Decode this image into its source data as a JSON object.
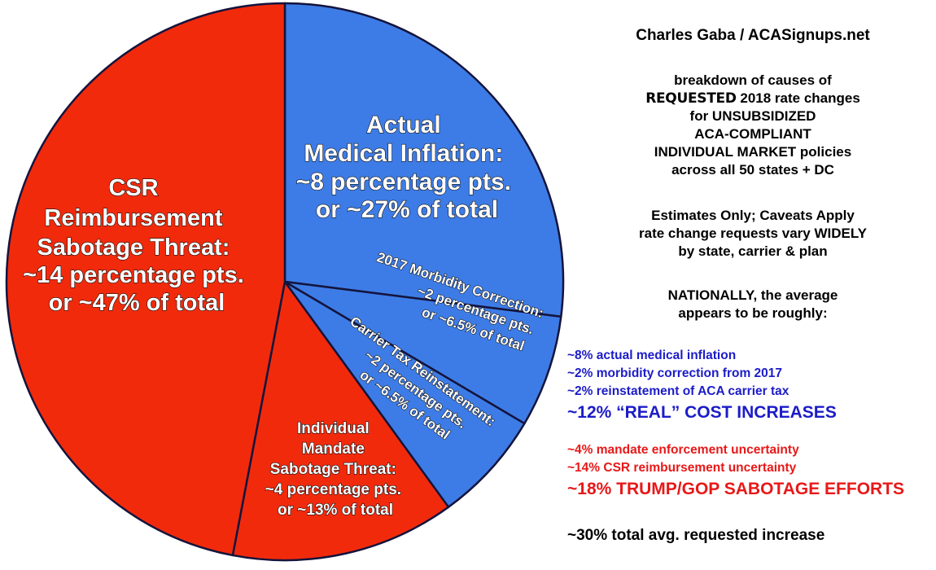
{
  "chart_data": {
    "type": "pie",
    "title": "",
    "start": "top",
    "direction": "clockwise",
    "slices": [
      {
        "name": "Actual Medical Inflation",
        "points": 8,
        "share": 27,
        "color": "#3d7ce6",
        "label_lines": [
          "Actual",
          "Medical Inflation:",
          "~8 percentage pts.",
          "or ~27% of total"
        ]
      },
      {
        "name": "2017 Morbidity Correction",
        "points": 2,
        "share": 6.5,
        "color": "#3d7ce6",
        "label_lines": [
          "2017 Morbidity Correction:",
          "~2 percentage pts.",
          "or ~6.5% of total"
        ]
      },
      {
        "name": "Carrier Tax Reinstatement",
        "points": 2,
        "share": 6.5,
        "color": "#3d7ce6",
        "label_lines": [
          "Carrier Tax Reinstatement:",
          "~2 percentage pts.",
          "or ~6.5% of total"
        ]
      },
      {
        "name": "Individual Mandate Sabotage Threat",
        "points": 4,
        "share": 13,
        "color": "#f22a0c",
        "label_lines": [
          "Individual",
          "Mandate",
          "Sabotage Threat:",
          "~4 percentage pts.",
          "or ~13% of total"
        ]
      },
      {
        "name": "CSR Reimbursement Sabotage Threat",
        "points": 14,
        "share": 47,
        "color": "#f22a0c",
        "label_lines": [
          "CSR",
          "Reimbursement",
          "Sabotage Threat:",
          "~14 percentage pts.",
          "or ~47% of total"
        ]
      }
    ]
  },
  "credit": "Charles Gaba / ACASignups.net",
  "description": {
    "line1": "breakdown of causes of",
    "line2_emph": "REQUESTED",
    "line2_rest": " 2018 rate changes",
    "line3": "for UNSUBSIDIZED",
    "line4": "ACA-COMPLIANT",
    "line5": "INDIVIDUAL MARKET policies",
    "line6": "across all 50 states + DC"
  },
  "caveats": [
    "Estimates Only; Caveats Apply",
    "rate change requests vary WIDELY",
    "by state, carrier & plan"
  ],
  "national": [
    "NATIONALLY, the average",
    "appears to be roughly:"
  ],
  "real_costs": {
    "color": "#1c1cc8",
    "items": [
      "~8% actual medical inflation",
      "~2% morbidity correction from 2017",
      "~2% reinstatement of ACA carrier tax"
    ],
    "total": "~12% “REAL” COST INCREASES"
  },
  "sabotage": {
    "color": "#e81818",
    "items": [
      "~4% mandate enforcement uncertainty",
      "~14% CSR reimbursement uncertainty"
    ],
    "total": "~18% TRUMP/GOP SABOTAGE EFFORTS"
  },
  "grand_total": "~30% total avg. requested increase"
}
